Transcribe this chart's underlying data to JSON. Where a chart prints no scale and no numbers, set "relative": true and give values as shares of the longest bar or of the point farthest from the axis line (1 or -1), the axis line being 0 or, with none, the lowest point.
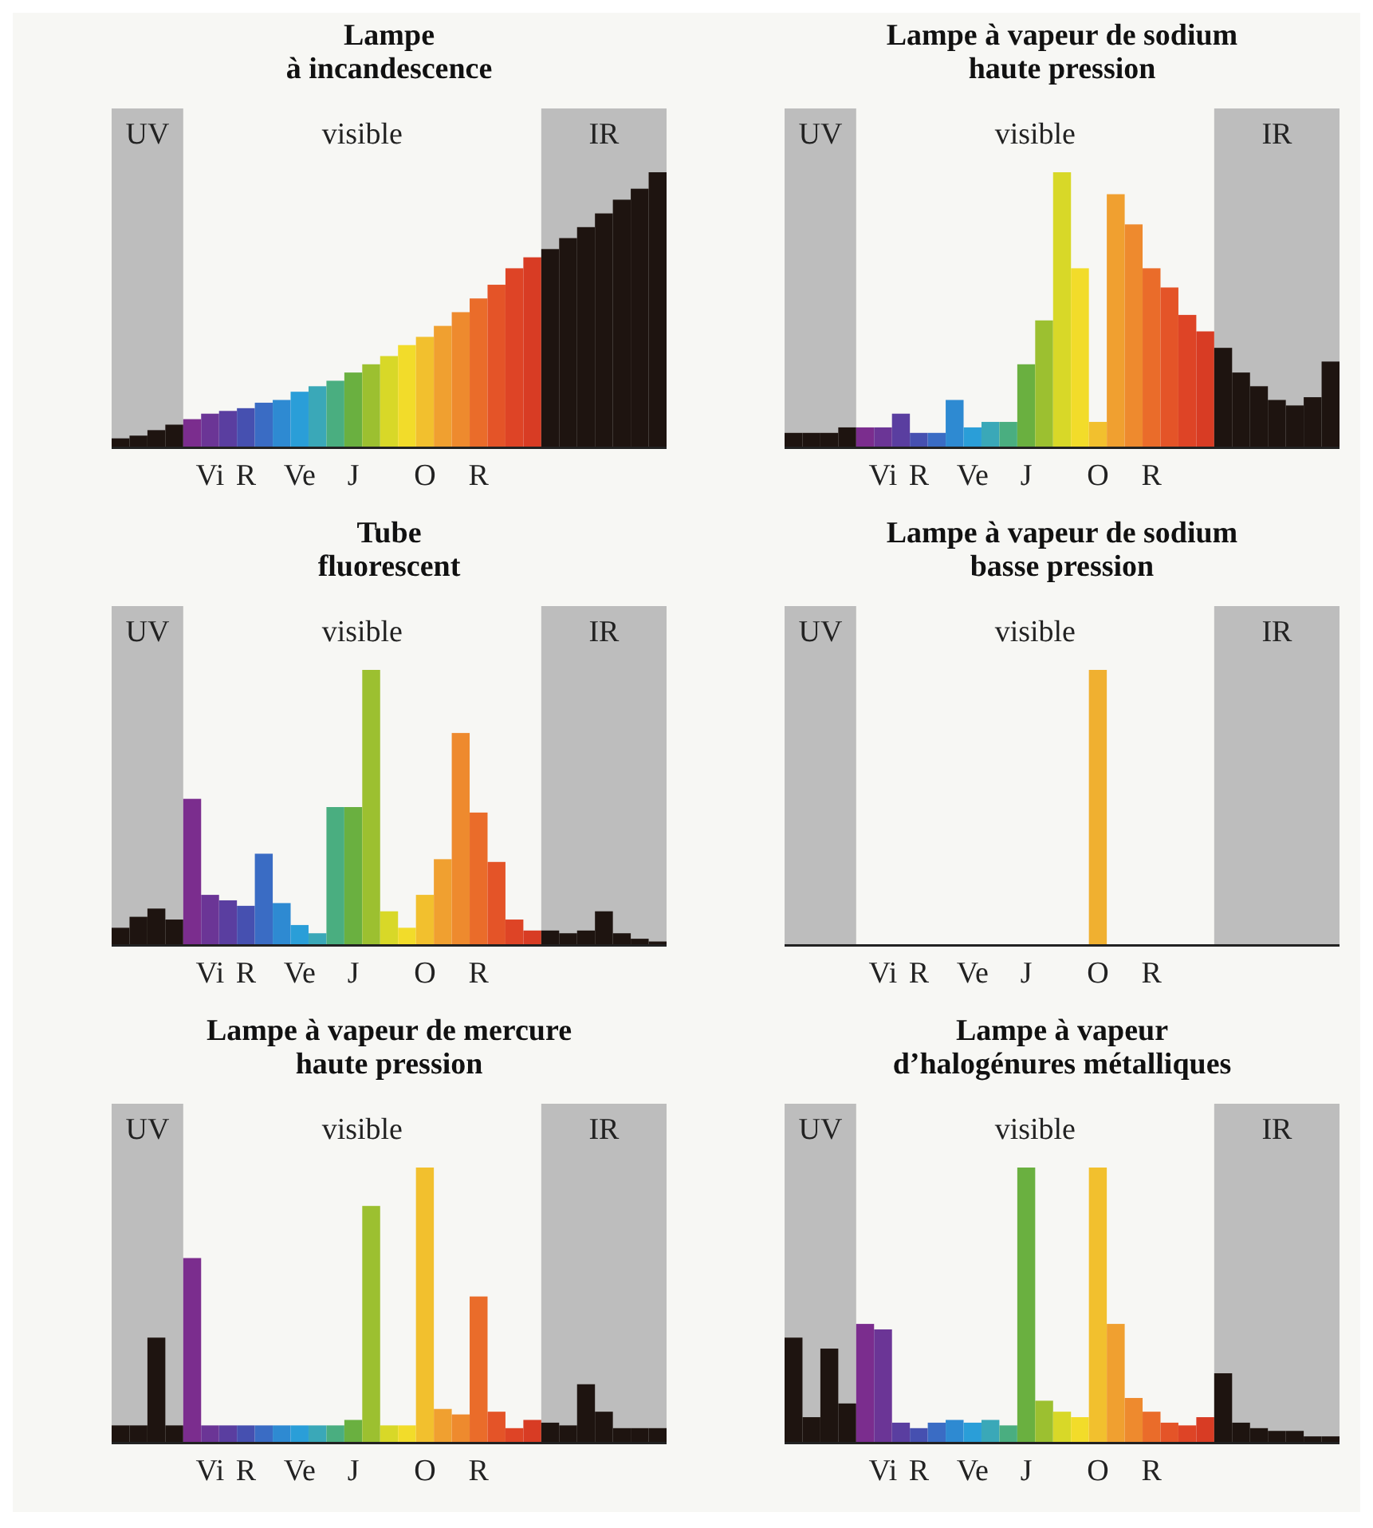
{
  "chart_data": [
    {
      "type": "bar",
      "title": "Lampe\nà incandescence",
      "relative": true,
      "annotations": [
        "UV",
        "visible",
        "IR"
      ],
      "categories": [
        null,
        null,
        null,
        null,
        null,
        "Vi",
        null,
        "R",
        null,
        null,
        "Ve",
        null,
        null,
        "J",
        null,
        null,
        null,
        "O",
        null,
        null,
        "R",
        null,
        null,
        null,
        null,
        null,
        null,
        null,
        null,
        null,
        null
      ],
      "values": [
        0.03,
        0.04,
        0.06,
        0.08,
        0.1,
        0.12,
        0.13,
        0.14,
        0.16,
        0.17,
        0.2,
        0.22,
        0.24,
        0.27,
        0.3,
        0.33,
        0.37,
        0.4,
        0.44,
        0.49,
        0.54,
        0.59,
        0.65,
        0.69,
        0.72,
        0.76,
        0.8,
        0.85,
        0.9,
        0.94,
        1
      ],
      "colors": [
        "#1e1410",
        "#1e1410",
        "#1e1410",
        "#1e1410",
        "#7b2d8e",
        "#6b3596",
        "#5a3ea0",
        "#4650b0",
        "#3a6cc4",
        "#2e8ad2",
        "#2a9ed8",
        "#3aa8b8",
        "#4aae80",
        "#6ab040",
        "#9cc030",
        "#d8d828",
        "#f2dc2a",
        "#f2c02e",
        "#f0a030",
        "#ee8a2e",
        "#ea6c2a",
        "#e45428",
        "#de4426",
        "#d83c24",
        "#1e1410",
        "#1e1410",
        "#1e1410",
        "#1e1410",
        "#1e1410",
        "#1e1410",
        "#1e1410"
      ]
    },
    {
      "type": "bar",
      "title": "Lampe à vapeur de sodium\nhaute pression",
      "relative": true,
      "annotations": [
        "UV",
        "visible",
        "IR"
      ],
      "categories": [
        null,
        null,
        null,
        null,
        null,
        "Vi",
        null,
        "R",
        null,
        null,
        "Ve",
        null,
        null,
        "J",
        null,
        null,
        null,
        "O",
        null,
        null,
        "R",
        null,
        null,
        null,
        null,
        null,
        null,
        null,
        null,
        null,
        null
      ],
      "values": [
        0.05,
        0.05,
        0.05,
        0.07,
        0.07,
        0.07,
        0.12,
        0.05,
        0.05,
        0.17,
        0.07,
        0.09,
        0.09,
        0.3,
        0.46,
        1,
        0.65,
        0.09,
        0.92,
        0.81,
        0.65,
        0.58,
        0.48,
        0.42,
        0.36,
        0.27,
        0.22,
        0.17,
        0.15,
        0.18,
        0.31
      ],
      "colors": [
        "#1e1410",
        "#1e1410",
        "#1e1410",
        "#1e1410",
        "#7b2d8e",
        "#6b3596",
        "#5a3ea0",
        "#4650b0",
        "#3a6cc4",
        "#2e8ad2",
        "#2a9ed8",
        "#3aa8b8",
        "#4aae80",
        "#6ab040",
        "#9cc030",
        "#d8d828",
        "#f2dc2a",
        "#f2c02e",
        "#f0a030",
        "#ee8a2e",
        "#ea6c2a",
        "#e45428",
        "#de4426",
        "#d83c24",
        "#1e1410",
        "#1e1410",
        "#1e1410",
        "#1e1410",
        "#1e1410",
        "#1e1410",
        "#1e1410"
      ]
    },
    {
      "type": "bar",
      "title": "Tube\nfluorescent",
      "relative": true,
      "annotations": [
        "UV",
        "visible",
        "IR"
      ],
      "categories": [
        null,
        null,
        null,
        null,
        null,
        "Vi",
        null,
        "R",
        null,
        null,
        "Ve",
        null,
        null,
        "J",
        null,
        null,
        null,
        "O",
        null,
        null,
        "R",
        null,
        null,
        null,
        null,
        null,
        null,
        null,
        null,
        null,
        null
      ],
      "values": [
        0.06,
        0.1,
        0.13,
        0.09,
        0.53,
        0.18,
        0.16,
        0.14,
        0.33,
        0.15,
        0.07,
        0.04,
        0.5,
        0.5,
        1,
        0.12,
        0.06,
        0.18,
        0.31,
        0.77,
        0.48,
        0.3,
        0.09,
        0.05,
        0.05,
        0.04,
        0.05,
        0.12,
        0.04,
        0.02,
        0.01
      ],
      "colors": [
        "#1e1410",
        "#1e1410",
        "#1e1410",
        "#1e1410",
        "#7b2d8e",
        "#6b3596",
        "#5a3ea0",
        "#4650b0",
        "#3a6cc4",
        "#2e8ad2",
        "#2a9ed8",
        "#3aa8b8",
        "#4aae80",
        "#6ab040",
        "#9cc030",
        "#d8d828",
        "#f2dc2a",
        "#f2c02e",
        "#f0a030",
        "#ee8a2e",
        "#ea6c2a",
        "#e45428",
        "#de4426",
        "#d83c24",
        "#1e1410",
        "#1e1410",
        "#1e1410",
        "#1e1410",
        "#1e1410",
        "#1e1410",
        "#1e1410"
      ]
    },
    {
      "type": "bar",
      "title": "Lampe à vapeur de sodium\nbasse pression",
      "relative": true,
      "annotations": [
        "UV",
        "visible",
        "IR"
      ],
      "categories": [
        null,
        null,
        null,
        null,
        null,
        "Vi",
        null,
        "R",
        null,
        null,
        "Ve",
        null,
        null,
        "J",
        null,
        null,
        null,
        "O",
        null,
        null,
        "R",
        null,
        null,
        null,
        null,
        null,
        null,
        null,
        null,
        null,
        null
      ],
      "values": [
        null,
        null,
        null,
        null,
        null,
        null,
        null,
        null,
        null,
        null,
        null,
        null,
        null,
        null,
        null,
        null,
        null,
        1,
        null,
        null,
        null,
        null,
        null,
        null,
        null,
        null,
        null,
        null,
        null,
        null,
        null
      ],
      "colors": [
        "#1e1410",
        "#1e1410",
        "#1e1410",
        "#1e1410",
        null,
        null,
        null,
        null,
        null,
        null,
        null,
        null,
        null,
        null,
        null,
        null,
        null,
        "#f0b030",
        null,
        null,
        null,
        null,
        null,
        null,
        "#1e1410",
        "#1e1410",
        "#1e1410",
        "#1e1410",
        "#1e1410",
        "#1e1410",
        "#1e1410"
      ]
    },
    {
      "type": "bar",
      "title": "Lampe à vapeur de mercure\nhaute pression",
      "relative": true,
      "annotations": [
        "UV",
        "visible",
        "IR"
      ],
      "categories": [
        null,
        null,
        null,
        null,
        null,
        "Vi",
        null,
        "R",
        null,
        null,
        "Ve",
        null,
        null,
        "J",
        null,
        null,
        null,
        "O",
        null,
        null,
        "R",
        null,
        null,
        null,
        null,
        null,
        null,
        null,
        null,
        null,
        null
      ],
      "values": [
        0.06,
        0.06,
        0.38,
        0.06,
        0.67,
        0.06,
        0.06,
        0.06,
        0.06,
        0.06,
        0.06,
        0.06,
        0.06,
        0.08,
        0.86,
        0.06,
        0.06,
        1,
        0.12,
        0.1,
        0.53,
        0.11,
        0.05,
        0.08,
        0.07,
        0.06,
        0.21,
        0.11,
        0.05,
        0.05,
        0.05
      ],
      "colors": [
        "#1e1410",
        "#1e1410",
        "#1e1410",
        "#1e1410",
        "#7b2d8e",
        "#6b3596",
        "#5a3ea0",
        "#4650b0",
        "#3a6cc4",
        "#2e8ad2",
        "#2a9ed8",
        "#3aa8b8",
        "#4aae80",
        "#6ab040",
        "#9cc030",
        "#d8d828",
        "#f2dc2a",
        "#f2c02e",
        "#f0a030",
        "#ee8a2e",
        "#ea6c2a",
        "#e45428",
        "#de4426",
        "#d83c24",
        "#1e1410",
        "#1e1410",
        "#1e1410",
        "#1e1410",
        "#1e1410",
        "#1e1410",
        "#1e1410"
      ]
    },
    {
      "type": "bar",
      "title": "Lampe à vapeur\nd’halogénures métalliques",
      "relative": true,
      "annotations": [
        "UV",
        "visible",
        "IR"
      ],
      "categories": [
        null,
        null,
        null,
        null,
        null,
        "Vi",
        null,
        "R",
        null,
        null,
        "Ve",
        null,
        null,
        "J",
        null,
        null,
        null,
        "O",
        null,
        null,
        "R",
        null,
        null,
        null,
        null,
        null,
        null,
        null,
        null,
        null,
        null
      ],
      "values": [
        0.38,
        0.09,
        0.34,
        0.14,
        0.43,
        0.41,
        0.07,
        0.05,
        0.07,
        0.08,
        0.07,
        0.08,
        0.06,
        1,
        0.15,
        0.11,
        0.09,
        1,
        0.43,
        0.16,
        0.11,
        0.07,
        0.06,
        0.09,
        0.25,
        0.07,
        0.05,
        0.04,
        0.04,
        0.02,
        0.02
      ],
      "colors": [
        "#1e1410",
        "#1e1410",
        "#1e1410",
        "#1e1410",
        "#7b2d8e",
        "#6b3596",
        "#5a3ea0",
        "#4650b0",
        "#3a6cc4",
        "#2e8ad2",
        "#2a9ed8",
        "#3aa8b8",
        "#4aae80",
        "#6ab040",
        "#9cc030",
        "#d8d828",
        "#f2dc2a",
        "#f2c02e",
        "#f0a030",
        "#ee8a2e",
        "#ea6c2a",
        "#e45428",
        "#de4426",
        "#d83c24",
        "#1e1410",
        "#1e1410",
        "#1e1410",
        "#1e1410",
        "#1e1410",
        "#1e1410",
        "#1e1410"
      ]
    }
  ]
}
